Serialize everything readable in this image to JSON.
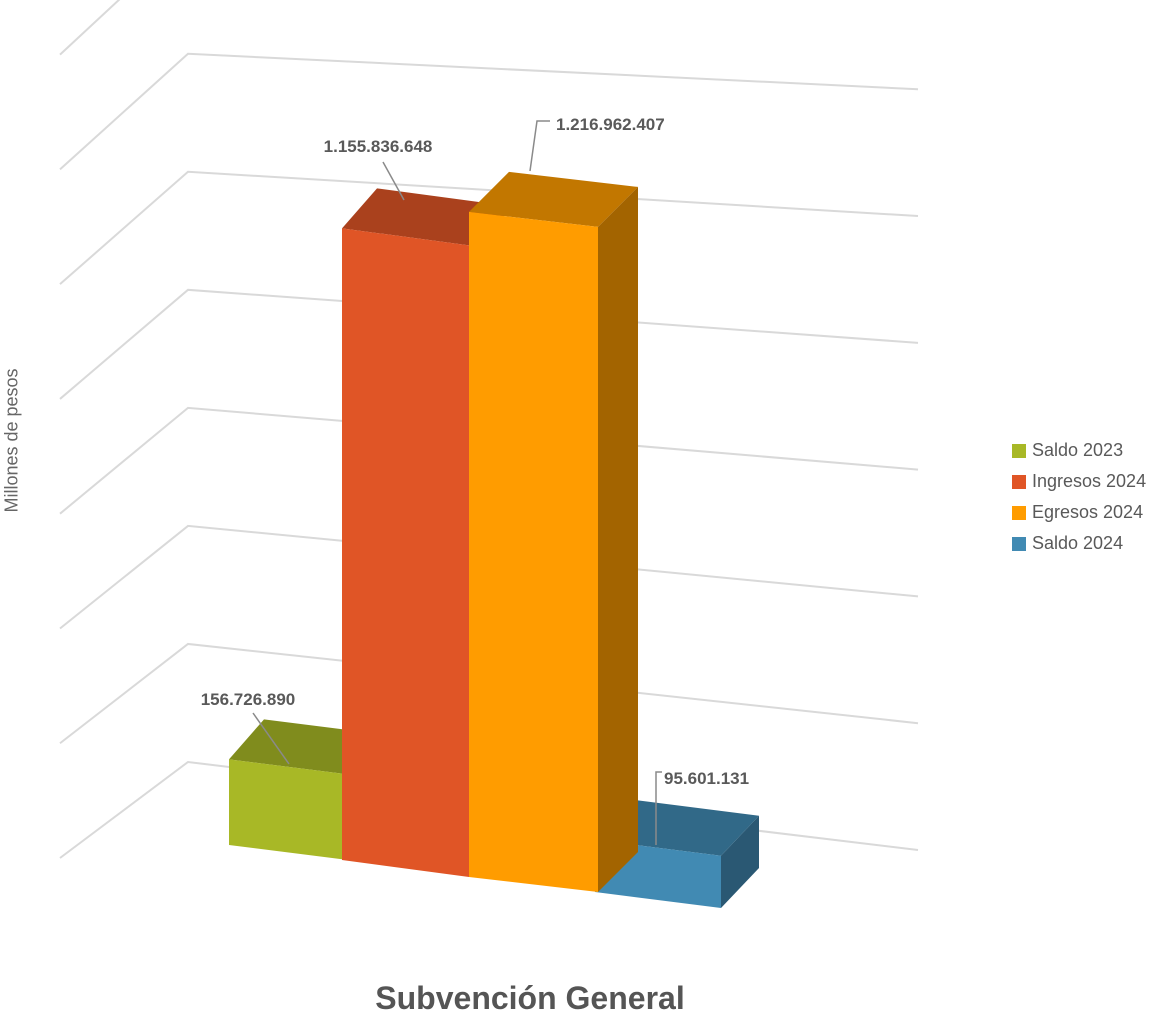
{
  "chart_data": {
    "type": "bar",
    "title": "",
    "xlabel": "Subvención General",
    "ylabel": "Millones de pesos",
    "categories": [
      "Subvención General"
    ],
    "series": [
      {
        "name": "Saldo 2023",
        "values": [
          156726890
        ],
        "label": "156.726.890",
        "color": "#A8B826"
      },
      {
        "name": "Ingresos 2024",
        "values": [
          1155836648
        ],
        "label": "1.155.836.648",
        "color": "#E05526"
      },
      {
        "name": "Egresos 2024",
        "values": [
          1216962407
        ],
        "label": "1.216.962.407",
        "color": "#FF9C00"
      },
      {
        "name": "Saldo 2024",
        "values": [
          95601131
        ],
        "label": "95.601.131",
        "color": "#418AB3"
      }
    ],
    "ylim": [
      0,
      1400000000
    ],
    "grid": true,
    "legend": "right"
  }
}
